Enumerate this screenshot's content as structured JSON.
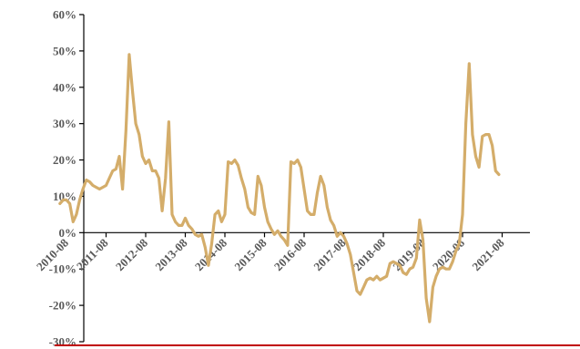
{
  "chart_data": {
    "type": "line",
    "title": "",
    "xlabel": "",
    "ylabel": "",
    "ylim": [
      -0.3,
      0.6
    ],
    "y_ticks": [
      {
        "value": -0.3,
        "label": "-30%"
      },
      {
        "value": -0.2,
        "label": "-20%"
      },
      {
        "value": -0.1,
        "label": "-10%"
      },
      {
        "value": 0.0,
        "label": "0%"
      },
      {
        "value": 0.1,
        "label": "10%"
      },
      {
        "value": 0.2,
        "label": "20%"
      },
      {
        "value": 0.3,
        "label": "30%"
      },
      {
        "value": 0.4,
        "label": "40%"
      },
      {
        "value": 0.5,
        "label": "50%"
      },
      {
        "value": 0.6,
        "label": "60%"
      }
    ],
    "x_ticks": [
      "2010-08",
      "2011-08",
      "2012-08",
      "2013-08",
      "2014-08",
      "2015-08",
      "2016-08",
      "2017-08",
      "2018-08",
      "2019-08",
      "2020-08",
      "2021-08"
    ],
    "grid": false,
    "legend": "none",
    "series": [
      {
        "color": "#d4ad6a",
        "points": [
          [
            "2010-06",
            0.08
          ],
          [
            "2010-07",
            0.09
          ],
          [
            "2010-08",
            0.09
          ],
          [
            "2010-09",
            0.08
          ],
          [
            "2010-10",
            0.03
          ],
          [
            "2010-11",
            0.05
          ],
          [
            "2010-12",
            0.09
          ],
          [
            "2011-01",
            0.12
          ],
          [
            "2011-02",
            0.145
          ],
          [
            "2011-03",
            0.14
          ],
          [
            "2011-04",
            0.13
          ],
          [
            "2011-05",
            0.125
          ],
          [
            "2011-06",
            0.12
          ],
          [
            "2011-07",
            0.125
          ],
          [
            "2011-08",
            0.13
          ],
          [
            "2011-09",
            0.15
          ],
          [
            "2011-10",
            0.17
          ],
          [
            "2011-11",
            0.175
          ],
          [
            "2011-12",
            0.21
          ],
          [
            "2012-01",
            0.12
          ],
          [
            "2012-02",
            0.28
          ],
          [
            "2012-03",
            0.49
          ],
          [
            "2012-04",
            0.39
          ],
          [
            "2012-05",
            0.3
          ],
          [
            "2012-06",
            0.27
          ],
          [
            "2012-07",
            0.21
          ],
          [
            "2012-08",
            0.19
          ],
          [
            "2012-09",
            0.2
          ],
          [
            "2012-10",
            0.17
          ],
          [
            "2012-11",
            0.17
          ],
          [
            "2012-12",
            0.15
          ],
          [
            "2013-01",
            0.06
          ],
          [
            "2013-02",
            0.15
          ],
          [
            "2013-03",
            0.305
          ],
          [
            "2013-04",
            0.05
          ],
          [
            "2013-05",
            0.03
          ],
          [
            "2013-06",
            0.02
          ],
          [
            "2013-07",
            0.02
          ],
          [
            "2013-08",
            0.04
          ],
          [
            "2013-09",
            0.02
          ],
          [
            "2013-10",
            0.01
          ],
          [
            "2013-11",
            -0.005
          ],
          [
            "2013-12",
            -0.01
          ],
          [
            "2014-01",
            -0.005
          ],
          [
            "2014-02",
            -0.04
          ],
          [
            "2014-03",
            -0.09
          ],
          [
            "2014-04",
            -0.03
          ],
          [
            "2014-05",
            0.05
          ],
          [
            "2014-06",
            0.06
          ],
          [
            "2014-07",
            0.03
          ],
          [
            "2014-08",
            0.05
          ],
          [
            "2014-09",
            0.195
          ],
          [
            "2014-10",
            0.19
          ],
          [
            "2014-11",
            0.2
          ],
          [
            "2014-12",
            0.185
          ],
          [
            "2015-01",
            0.15
          ],
          [
            "2015-02",
            0.12
          ],
          [
            "2015-03",
            0.07
          ],
          [
            "2015-04",
            0.055
          ],
          [
            "2015-05",
            0.05
          ],
          [
            "2015-06",
            0.155
          ],
          [
            "2015-07",
            0.13
          ],
          [
            "2015-08",
            0.07
          ],
          [
            "2015-09",
            0.03
          ],
          [
            "2015-10",
            0.01
          ],
          [
            "2015-11",
            -0.005
          ],
          [
            "2015-12",
            0.005
          ],
          [
            "2016-01",
            -0.01
          ],
          [
            "2016-02",
            -0.02
          ],
          [
            "2016-03",
            -0.035
          ],
          [
            "2016-04",
            0.195
          ],
          [
            "2016-05",
            0.19
          ],
          [
            "2016-06",
            0.2
          ],
          [
            "2016-07",
            0.18
          ],
          [
            "2016-08",
            0.12
          ],
          [
            "2016-09",
            0.06
          ],
          [
            "2016-10",
            0.05
          ],
          [
            "2016-11",
            0.05
          ],
          [
            "2016-12",
            0.11
          ],
          [
            "2017-01",
            0.155
          ],
          [
            "2017-02",
            0.13
          ],
          [
            "2017-03",
            0.07
          ],
          [
            "2017-04",
            0.035
          ],
          [
            "2017-05",
            0.02
          ],
          [
            "2017-06",
            -0.01
          ],
          [
            "2017-07",
            0.0
          ],
          [
            "2017-08",
            -0.01
          ],
          [
            "2017-09",
            -0.03
          ],
          [
            "2017-10",
            -0.06
          ],
          [
            "2017-11",
            -0.11
          ],
          [
            "2017-12",
            -0.16
          ],
          [
            "2018-01",
            -0.17
          ],
          [
            "2018-02",
            -0.15
          ],
          [
            "2018-03",
            -0.13
          ],
          [
            "2018-04",
            -0.125
          ],
          [
            "2018-05",
            -0.13
          ],
          [
            "2018-06",
            -0.12
          ],
          [
            "2018-07",
            -0.13
          ],
          [
            "2018-08",
            -0.125
          ],
          [
            "2018-09",
            -0.12
          ],
          [
            "2018-10",
            -0.085
          ],
          [
            "2018-11",
            -0.08
          ],
          [
            "2018-12",
            -0.085
          ],
          [
            "2019-01",
            -0.09
          ],
          [
            "2019-02",
            -0.11
          ],
          [
            "2019-03",
            -0.115
          ],
          [
            "2019-04",
            -0.1
          ],
          [
            "2019-05",
            -0.095
          ],
          [
            "2019-06",
            -0.07
          ],
          [
            "2019-07",
            0.035
          ],
          [
            "2019-08",
            -0.02
          ],
          [
            "2019-09",
            -0.18
          ],
          [
            "2019-10",
            -0.245
          ],
          [
            "2019-11",
            -0.15
          ],
          [
            "2019-12",
            -0.12
          ],
          [
            "2020-01",
            -0.1
          ],
          [
            "2020-02",
            -0.095
          ],
          [
            "2020-03",
            -0.1
          ],
          [
            "2020-04",
            -0.1
          ],
          [
            "2020-05",
            -0.08
          ],
          [
            "2020-06",
            -0.05
          ],
          [
            "2020-07",
            -0.03
          ],
          [
            "2020-08",
            0.05
          ],
          [
            "2020-09",
            0.3
          ],
          [
            "2020-10",
            0.465
          ],
          [
            "2020-11",
            0.27
          ],
          [
            "2020-12",
            0.21
          ],
          [
            "2021-01",
            0.18
          ],
          [
            "2021-02",
            0.265
          ],
          [
            "2021-03",
            0.27
          ],
          [
            "2021-04",
            0.27
          ],
          [
            "2021-05",
            0.24
          ],
          [
            "2021-06",
            0.17
          ],
          [
            "2021-07",
            0.16
          ]
        ]
      }
    ]
  }
}
